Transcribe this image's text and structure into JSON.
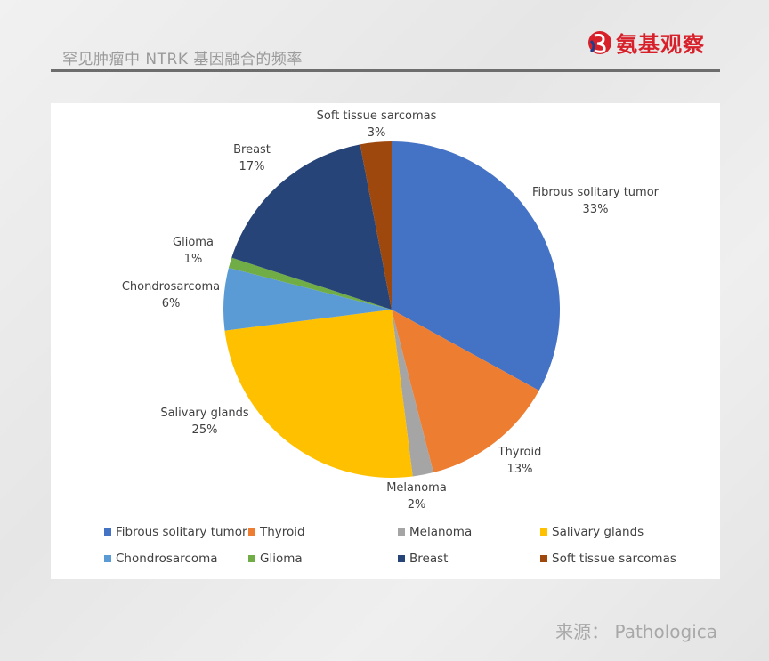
{
  "header": {
    "title": "罕见肿瘤中 NTRK 基因融合的频率",
    "logo_text": "氨基观察"
  },
  "source": "来源：  Pathologica",
  "chart_data": {
    "type": "pie",
    "start": "top",
    "direction": "clockwise",
    "legend_position": "bottom",
    "slices": [
      {
        "name": "Fibrous solitary tumor",
        "value": 33,
        "label": "33%",
        "color": "#4472C4"
      },
      {
        "name": "Thyroid",
        "value": 13,
        "label": "13%",
        "color": "#ED7D31"
      },
      {
        "name": "Melanoma",
        "value": 2,
        "label": "2%",
        "color": "#A5A5A5"
      },
      {
        "name": "Salivary glands",
        "value": 25,
        "label": "25%",
        "color": "#FFC000"
      },
      {
        "name": "Chondrosarcoma",
        "value": 6,
        "label": "6%",
        "color": "#5B9BD5"
      },
      {
        "name": "Glioma",
        "value": 1,
        "label": "1%",
        "color": "#70AD47"
      },
      {
        "name": "Breast",
        "value": 17,
        "label": "17%",
        "color": "#264478"
      },
      {
        "name": "Soft tissue sarcomas",
        "value": 3,
        "label": "3%",
        "color": "#9E480E"
      }
    ]
  }
}
